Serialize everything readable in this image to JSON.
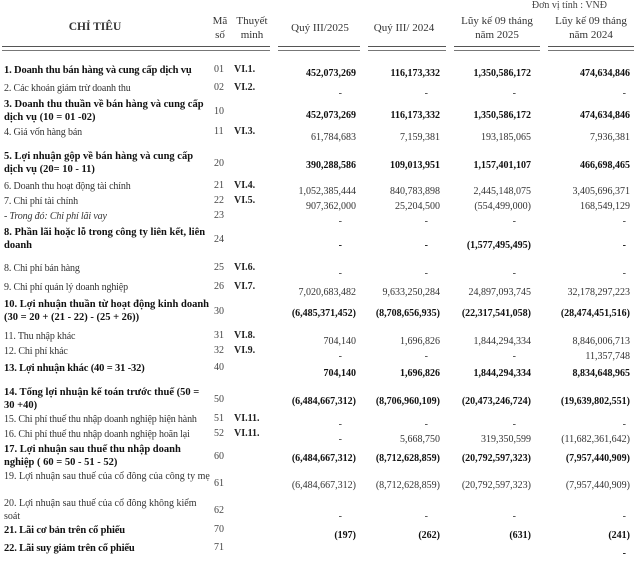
{
  "unit_label": "Đơn vị tính : VNĐ",
  "headers": {
    "indicator": "CHỈ TIÊU",
    "code": "Mã số",
    "note": "Thuyết minh",
    "q3_2025": "Quý III/2025",
    "q3_2024": "Quý III/ 2024",
    "ytd_2025": "Lũy kế 09 tháng năm 2025",
    "ytd_2024": "Lũy kế 09 tháng năm 2024"
  },
  "rows": [
    {
      "label": "1. Doanh thu bán hàng và cung cấp dịch vụ",
      "code": "01",
      "note": "VI.1.",
      "bold": true,
      "values": [
        "452,073,269",
        "116,173,332",
        "1,350,586,172",
        "474,634,846"
      ]
    },
    {
      "label": "2. Các khoản giảm trừ doanh thu",
      "code": "02",
      "note": "VI.2.",
      "bold": false,
      "values": [
        "-",
        "-",
        "-",
        "-"
      ]
    },
    {
      "label": "3. Doanh thu thuần về bán hàng và cung cấp dịch vụ (10 = 01 -02)",
      "code": "10",
      "note": "",
      "bold": true,
      "values": [
        "452,073,269",
        "116,173,332",
        "1,350,586,172",
        "474,634,846"
      ]
    },
    {
      "label": "4. Giá vốn hàng bán",
      "code": "11",
      "note": "VI.3.",
      "bold": false,
      "values": [
        "61,784,683",
        "7,159,381",
        "193,185,065",
        "7,936,381"
      ]
    },
    {
      "label": "5. Lợi nhuận gộp về bán hàng và cung cấp dịch vụ (20= 10 - 11)",
      "code": "20",
      "note": "",
      "bold": true,
      "values": [
        "390,288,586",
        "109,013,951",
        "1,157,401,107",
        "466,698,465"
      ]
    },
    {
      "label": "6. Doanh thu hoạt động tài chính",
      "code": "21",
      "note": "VI.4.",
      "bold": false,
      "values": [
        "1,052,385,444",
        "840,783,898",
        "2,445,148,075",
        "3,405,696,371"
      ]
    },
    {
      "label": "7. Chi phí tài chính",
      "code": "22",
      "note": "VI.5.",
      "bold": false,
      "values": [
        "907,362,000",
        "25,204,500",
        "(554,499,000)",
        "168,549,129"
      ]
    },
    {
      "label": "- Trong đó: Chi phí lãi vay",
      "code": "23",
      "note": "",
      "bold": false,
      "italic": true,
      "values": [
        "-",
        "-",
        "-",
        "-"
      ]
    },
    {
      "label": "8. Phần lãi hoặc lỗ trong công ty liên kết, liên doanh",
      "code": "24",
      "note": "",
      "bold": true,
      "values": [
        "-",
        "-",
        "(1,577,495,495)",
        "-"
      ]
    },
    {
      "label": "8. Chi phí bán hàng",
      "code": "25",
      "note": "VI.6.",
      "bold": false,
      "values": [
        "-",
        "-",
        "-",
        "-"
      ]
    },
    {
      "label": "9. Chi phí quản lý doanh nghiệp",
      "code": "26",
      "note": "VI.7.",
      "bold": false,
      "values": [
        "7,020,683,482",
        "9,633,250,284",
        "24,897,093,745",
        "32,178,297,223"
      ]
    },
    {
      "label": "10. Lợi nhuận thuần từ hoạt động kinh doanh (30 = 20 + (21 - 22) - (25 + 26))",
      "code": "30",
      "note": "",
      "bold": true,
      "values": [
        "(6,485,371,452)",
        "(8,708,656,935)",
        "(22,317,541,058)",
        "(28,474,451,516)"
      ]
    },
    {
      "label": "11. Thu nhập khác",
      "code": "31",
      "note": "VI.8.",
      "bold": false,
      "values": [
        "704,140",
        "1,696,826",
        "1,844,294,334",
        "8,846,006,713"
      ]
    },
    {
      "label": "12. Chi phí khác",
      "code": "32",
      "note": "VI.9.",
      "bold": false,
      "values": [
        "-",
        "-",
        "-",
        "11,357,748"
      ]
    },
    {
      "label": "13. Lợi nhuận khác (40 = 31 -32)",
      "code": "40",
      "note": "",
      "bold": true,
      "values": [
        "704,140",
        "1,696,826",
        "1,844,294,334",
        "8,834,648,965"
      ]
    },
    {
      "label": "14. Tổng lợi nhuận kế toán trước thuế (50 = 30 +40)",
      "code": "50",
      "note": "",
      "bold": true,
      "values": [
        "(6,484,667,312)",
        "(8,706,960,109)",
        "(20,473,246,724)",
        "(19,639,802,551)"
      ]
    },
    {
      "label": "15. Chi phí thuế thu nhập doanh nghiệp hiện hành",
      "code": "51",
      "note": "VI.11.",
      "bold": false,
      "values": [
        "-",
        "-",
        "-",
        "-"
      ]
    },
    {
      "label": "16. Chi phí thuế thu nhập doanh nghiệp hoãn lại",
      "code": "52",
      "note": "VI.11.",
      "bold": false,
      "values": [
        "-",
        "5,668,750",
        "319,350,599",
        "(11,682,361,642)"
      ]
    },
    {
      "label": "17. Lợi nhuận sau thuế thu nhập doanh nghiệp ( 60 = 50 - 51 - 52)",
      "code": "60",
      "note": "",
      "bold": true,
      "values": [
        "(6,484,667,312)",
        "(8,712,628,859)",
        "(20,792,597,323)",
        "(7,957,440,909)"
      ]
    },
    {
      "label": "19. Lợi nhuận sau thuế của cổ đông của công ty mẹ",
      "code": "61",
      "note": "",
      "bold": false,
      "values": [
        "(6,484,667,312)",
        "(8,712,628,859)",
        "(20,792,597,323)",
        "(7,957,440,909)"
      ]
    },
    {
      "label": "20. Lợi nhuận sau thuế của cổ đông không kiểm soát",
      "code": "62",
      "note": "",
      "bold": false,
      "values": [
        "-",
        "-",
        "-",
        "-"
      ]
    },
    {
      "label": "21. Lãi cơ bản trên cổ phiếu",
      "code": "70",
      "note": "",
      "bold": true,
      "values": [
        "(197)",
        "(262)",
        "(631)",
        "(241)"
      ]
    },
    {
      "label": "22. Lãi suy giảm trên cổ phiếu",
      "code": "71",
      "note": "",
      "bold": true,
      "values": [
        "",
        "",
        "",
        "-"
      ]
    }
  ]
}
